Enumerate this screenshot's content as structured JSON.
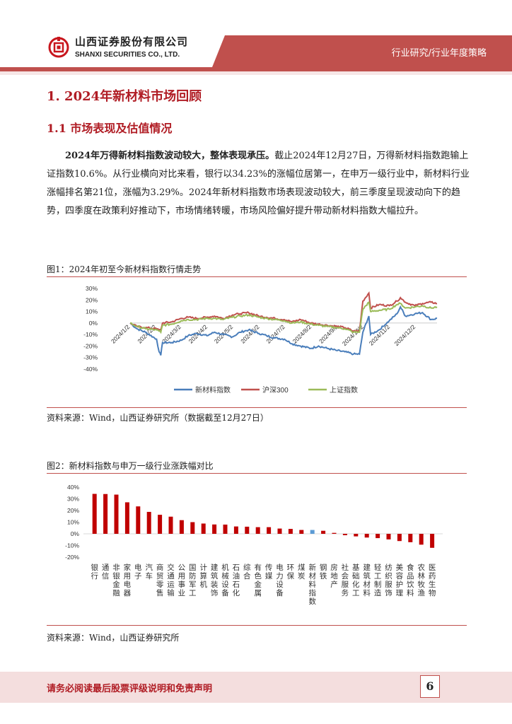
{
  "header": {
    "company_cn": "山西证券股份有限公司",
    "company_en": "SHANXI SECURITIES CO., LTD.",
    "section": "行业研究/行业年度策略"
  },
  "heading1": "1. 2024年新材料市场回顾",
  "heading2": "1.1  市场表现及估值情况",
  "paragraph": {
    "bold": "2024年万得新材料指数波动较大，整体表现承压。",
    "text": "截止2024年12月27日，万得新材料指数跑输上证指数10.6%。从行业横向对比来看，银行以34.23%的涨幅位居第一，在申万一级行业中，新材料行业涨幅排名第21位，涨幅为3.29%。2024年新材料指数市场表现波动较大，前三季度呈现波动向下的趋势，四季度在政策利好推动下，市场情绪转暖，市场风险偏好提升带动新材料指数大幅拉升。"
  },
  "figure1": {
    "caption": "图1：2024年初至今新材料指数行情走势",
    "source": "资料来源：Wind，山西证券研究所（数据截至12月27日）"
  },
  "figure2": {
    "caption": "图2：新材料指数与申万一级行业涨跌幅对比",
    "source": "资料来源：Wind，山西证券研究所"
  },
  "chart_data": [
    {
      "type": "line",
      "ylim": [
        -40,
        30
      ],
      "yticks": [
        "30%",
        "20%",
        "10%",
        "0%",
        "-10%",
        "-20%",
        "-30%",
        "-40%"
      ],
      "xticks": [
        "2024/1/2",
        "2024/2/2",
        "2024/3/2",
        "2024/4/2",
        "2024/5/2",
        "2024/6/2",
        "2024/7/2",
        "2024/8/2",
        "2024/9/2",
        "2024/10/2",
        "2024/11/2",
        "2024/12/2"
      ],
      "legend": "bottom",
      "x": [
        "2024-01-02",
        "2024-01-10",
        "2024-01-20",
        "2024-02-02",
        "2024-02-05",
        "2024-02-07",
        "2024-02-09",
        "2024-02-20",
        "2024-03-02",
        "2024-03-10",
        "2024-03-20",
        "2024-04-01",
        "2024-04-10",
        "2024-04-20",
        "2024-05-01",
        "2024-05-10",
        "2024-05-20",
        "2024-06-01",
        "2024-06-10",
        "2024-06-20",
        "2024-07-01",
        "2024-07-10",
        "2024-07-20",
        "2024-08-01",
        "2024-08-10",
        "2024-08-20",
        "2024-09-01",
        "2024-09-10",
        "2024-09-20",
        "2024-09-27",
        "2024-10-01",
        "2024-10-08",
        "2024-10-10",
        "2024-10-20",
        "2024-11-01",
        "2024-11-10",
        "2024-11-14",
        "2024-11-20",
        "2024-12-01",
        "2024-12-10",
        "2024-12-20",
        "2024-12-27"
      ],
      "series": [
        {
          "name": "新材料指数",
          "color": "#4a7ebb",
          "values": [
            0,
            -5,
            -8,
            -14,
            -25,
            -28,
            -17,
            -17,
            -15,
            -11,
            -9,
            -11,
            -8,
            -10,
            -12,
            -8,
            -6,
            -9,
            -11,
            -13,
            -14,
            -18,
            -20,
            -22,
            -20,
            -22,
            -24,
            -25,
            -27,
            -27,
            -8,
            6,
            -10,
            -6,
            2,
            8,
            14,
            6,
            8,
            9,
            3,
            4
          ]
        },
        {
          "name": "沪深300",
          "color": "#c0504d",
          "values": [
            0,
            -3,
            -4,
            -5,
            -6,
            -6,
            0,
            1,
            4,
            5,
            4,
            5,
            6,
            4,
            7,
            8,
            9,
            6,
            5,
            4,
            3,
            1,
            3,
            0,
            -1,
            -2,
            -3,
            -4,
            -7,
            -7,
            19,
            26,
            13,
            16,
            15,
            19,
            22,
            18,
            15,
            17,
            18,
            17
          ]
        },
        {
          "name": "上证指数",
          "color": "#9bbb59",
          "values": [
            0,
            -3,
            -5,
            -6,
            -7,
            -8,
            -2,
            -1,
            2,
            3,
            3,
            4,
            4,
            3,
            5,
            6,
            7,
            5,
            4,
            3,
            2,
            0,
            1,
            -1,
            -2,
            -3,
            -4,
            -5,
            -8,
            -8,
            12,
            18,
            10,
            11,
            12,
            16,
            17,
            13,
            14,
            15,
            13,
            14
          ]
        }
      ]
    },
    {
      "type": "bar",
      "ylim": [
        -20,
        40
      ],
      "yticks": [
        "40%",
        "30%",
        "20%",
        "10%",
        "0%",
        "-10%",
        "-20%"
      ],
      "categories": [
        "银行",
        "通信",
        "非银金融",
        "家用电器",
        "电子",
        "汽车",
        "商贸零售",
        "交通运输",
        "公用事业",
        "国防军工",
        "计算机",
        "建筑装饰",
        "机械设备",
        "石油石化",
        "综合",
        "有色金属",
        "传媒",
        "电力设备",
        "环保",
        "煤炭",
        "新材料指数",
        "钢铁",
        "房地产",
        "社会服务",
        "基础化工",
        "建筑材料",
        "轻工制造",
        "纺织服饰",
        "美容护理",
        "食品饮料",
        "农林牧渔",
        "医药生物"
      ],
      "values": [
        34.23,
        34.1,
        33.6,
        27,
        23.5,
        18.8,
        16.3,
        14.7,
        11.7,
        10,
        8.8,
        8,
        7.9,
        6.3,
        6.1,
        5.7,
        5.7,
        4.5,
        4.2,
        3.3,
        3.29,
        2.6,
        0.8,
        -1.2,
        -2.2,
        -3.2,
        -3.7,
        -4.8,
        -6.2,
        -7.2,
        -9.3,
        -12
      ],
      "colors": {
        "default": "#c00000",
        "highlight": "#5b9bd5"
      },
      "highlight": "新材料指数"
    }
  ],
  "footer": {
    "disclaimer": "请务必阅读最后股票评级说明和免责声明",
    "page": "6"
  }
}
